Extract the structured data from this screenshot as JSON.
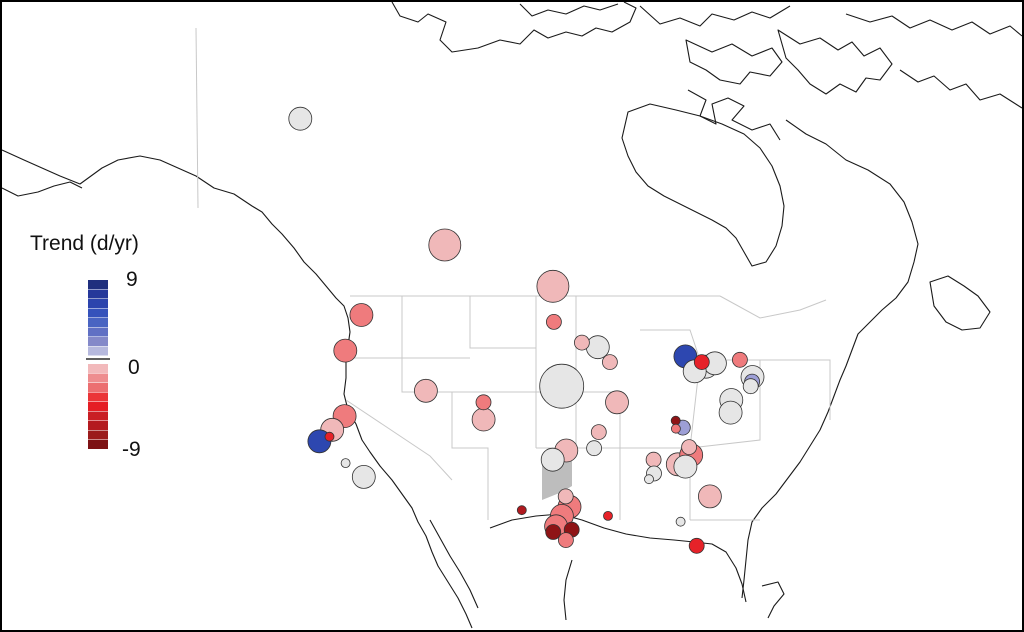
{
  "legend": {
    "title": "Trend (d/yr)",
    "max_label": "9",
    "zero_label": "0",
    "min_label": "-9",
    "blue_ramp": [
      "#1f2f7e",
      "#25389a",
      "#2c44ad",
      "#3552bb",
      "#4964c2",
      "#6070c4",
      "#8489c9",
      "#b6b9de"
    ],
    "red_ramp": [
      "#f2b9bb",
      "#ee8d8f",
      "#ec6f71",
      "#eb3538",
      "#e51e25",
      "#c91e24",
      "#b41a1f",
      "#9b1b1b",
      "#7d1214"
    ]
  },
  "sites": [
    {
      "lon": -150.5,
      "lat": 64.5,
      "value": 0,
      "size": "medium",
      "color": "#e6e6e6"
    },
    {
      "lon": -113.5,
      "lat": 53.5,
      "value": -1,
      "size": "large",
      "color": "#f0b8b9"
    },
    {
      "lon": -97.0,
      "lat": 49.9,
      "value": -1,
      "size": "large",
      "color": "#f0b8b9"
    },
    {
      "lon": -122.5,
      "lat": 47.4,
      "value": -3,
      "size": "medium",
      "color": "#ef7b7d"
    },
    {
      "lon": -123.1,
      "lat": 44.3,
      "value": -3,
      "size": "medium",
      "color": "#ef7b7d"
    },
    {
      "lon": -96.8,
      "lat": 46.8,
      "value": -3,
      "size": "small",
      "color": "#ef7b7d"
    },
    {
      "lon": -93.2,
      "lat": 45.0,
      "value": -1,
      "size": "small",
      "color": "#f0b8b9"
    },
    {
      "lon": -91.2,
      "lat": 44.6,
      "value": 0,
      "size": "medium",
      "color": "#e6e6e6"
    },
    {
      "lon": -89.8,
      "lat": 43.3,
      "value": -1,
      "size": "small",
      "color": "#f0b8b9"
    },
    {
      "lon": -95.8,
      "lat": 41.2,
      "value": 0,
      "size": "xlarge",
      "color": "#e6e6e6"
    },
    {
      "lon": -112.0,
      "lat": 40.8,
      "value": -1,
      "size": "medium",
      "color": "#f0b8b9"
    },
    {
      "lon": -105.0,
      "lat": 39.8,
      "value": -3,
      "size": "small",
      "color": "#ef7b7d"
    },
    {
      "lon": -104.8,
      "lat": 38.3,
      "value": -1,
      "size": "medium",
      "color": "#f0b8b9"
    },
    {
      "lon": -89.3,
      "lat": 39.8,
      "value": -1,
      "size": "medium",
      "color": "#f0b8b9"
    },
    {
      "lon": -91.6,
      "lat": 37.2,
      "value": -1,
      "size": "small",
      "color": "#f0b8b9"
    },
    {
      "lon": -92.2,
      "lat": 35.8,
      "value": 0,
      "size": "small",
      "color": "#e6e6e6"
    },
    {
      "lon": -95.3,
      "lat": 35.6,
      "value": -1,
      "size": "medium",
      "color": "#f0b8b9"
    },
    {
      "lon": -96.8,
      "lat": 34.8,
      "value": 0,
      "size": "medium",
      "color": "#e6e6e6"
    },
    {
      "lon": -120.9,
      "lat": 38.6,
      "value": -3,
      "size": "medium",
      "color": "#ef7b7d"
    },
    {
      "lon": -121.9,
      "lat": 37.4,
      "value": -1,
      "size": "medium",
      "color": "#f0b8b9"
    },
    {
      "lon": -122.0,
      "lat": 36.8,
      "value": -6,
      "size": "tiny",
      "color": "#e62229"
    },
    {
      "lon": -123.0,
      "lat": 36.4,
      "value": 8,
      "size": "medium",
      "color": "#2d47b0"
    },
    {
      "lon": -119.5,
      "lat": 34.5,
      "value": 0,
      "size": "tiny",
      "color": "#e6e6e6"
    },
    {
      "lon": -117.2,
      "lat": 33.3,
      "value": 0,
      "size": "medium",
      "color": "#e6e6e6"
    },
    {
      "lon": -100.0,
      "lat": 30.4,
      "value": -8,
      "size": "tiny",
      "color": "#b0191f"
    },
    {
      "lon": -95.4,
      "lat": 31.6,
      "value": -1,
      "size": "small",
      "color": "#f0b8b9"
    },
    {
      "lon": -95.0,
      "lat": 30.7,
      "value": -3,
      "size": "medium",
      "color": "#ef7b7d"
    },
    {
      "lon": -95.8,
      "lat": 29.9,
      "value": -3,
      "size": "medium",
      "color": "#ef7b7d"
    },
    {
      "lon": -96.4,
      "lat": 29.0,
      "value": -3,
      "size": "medium",
      "color": "#ef7b7d"
    },
    {
      "lon": -96.7,
      "lat": 28.5,
      "value": -9,
      "size": "small",
      "color": "#8f1416"
    },
    {
      "lon": -94.8,
      "lat": 28.7,
      "value": -9,
      "size": "small",
      "color": "#8f1416"
    },
    {
      "lon": -95.4,
      "lat": 27.8,
      "value": -3,
      "size": "small",
      "color": "#ef7b7d"
    },
    {
      "lon": -91.0,
      "lat": 29.9,
      "value": -6,
      "size": "tiny",
      "color": "#e62229"
    },
    {
      "lon": -82.7,
      "lat": 38.2,
      "value": -9,
      "size": "tiny",
      "color": "#8f1416"
    },
    {
      "lon": -82.0,
      "lat": 37.6,
      "value": 4,
      "size": "small",
      "color": "#9d9fd6"
    },
    {
      "lon": -82.8,
      "lat": 37.5,
      "value": -3,
      "size": "tiny",
      "color": "#ef7b7d"
    },
    {
      "lon": -85.7,
      "lat": 34.8,
      "value": -1,
      "size": "small",
      "color": "#f0b8b9"
    },
    {
      "lon": -85.8,
      "lat": 33.6,
      "value": 0,
      "size": "small",
      "color": "#e6e6e6"
    },
    {
      "lon": -83.1,
      "lat": 34.4,
      "value": -1,
      "size": "medium",
      "color": "#f0b8b9"
    },
    {
      "lon": -81.5,
      "lat": 35.2,
      "value": -3,
      "size": "medium",
      "color": "#ef7b7d"
    },
    {
      "lon": -82.3,
      "lat": 34.2,
      "value": 0,
      "size": "medium",
      "color": "#e6e6e6"
    },
    {
      "lon": -81.6,
      "lat": 35.9,
      "value": -1,
      "size": "small",
      "color": "#f0b8b9"
    },
    {
      "lon": -86.4,
      "lat": 33.1,
      "value": 0,
      "size": "tiny",
      "color": "#e6e6e6"
    },
    {
      "lon": -80.1,
      "lat": 31.6,
      "value": -1,
      "size": "medium",
      "color": "#f0b8b9"
    },
    {
      "lon": -83.5,
      "lat": 29.4,
      "value": 0,
      "size": "tiny",
      "color": "#e6e6e6"
    },
    {
      "lon": -82.1,
      "lat": 27.3,
      "value": -6,
      "size": "small",
      "color": "#e62229"
    },
    {
      "lon": -80.3,
      "lat": 43.8,
      "value": 8,
      "size": "medium",
      "color": "#2d47b0"
    },
    {
      "lon": -78.4,
      "lat": 43.3,
      "value": -6,
      "size": "small",
      "color": "#e62229"
    },
    {
      "lon": -78.0,
      "lat": 42.9,
      "value": 0,
      "size": "medium",
      "color": "#e6e6e6"
    },
    {
      "lon": -76.8,
      "lat": 43.2,
      "value": 0,
      "size": "medium",
      "color": "#e6e6e6"
    },
    {
      "lon": -79.5,
      "lat": 42.5,
      "value": 0,
      "size": "medium",
      "color": "#e6e6e6"
    },
    {
      "lon": -73.6,
      "lat": 43.5,
      "value": -3,
      "size": "small",
      "color": "#ef7b7d"
    },
    {
      "lon": -72.6,
      "lat": 42.0,
      "value": 0,
      "size": "medium",
      "color": "#e6e6e6"
    },
    {
      "lon": -72.8,
      "lat": 41.6,
      "value": 4,
      "size": "small",
      "color": "#9d9fd6"
    },
    {
      "lon": -73.1,
      "lat": 41.2,
      "value": 0,
      "size": "small",
      "color": "#e6e6e6"
    },
    {
      "lon": -75.8,
      "lat": 40.0,
      "value": 0,
      "size": "medium",
      "color": "#e6e6e6"
    },
    {
      "lon": -76.2,
      "lat": 38.9,
      "value": 0,
      "size": "medium",
      "color": "#e6e6e6"
    }
  ]
}
